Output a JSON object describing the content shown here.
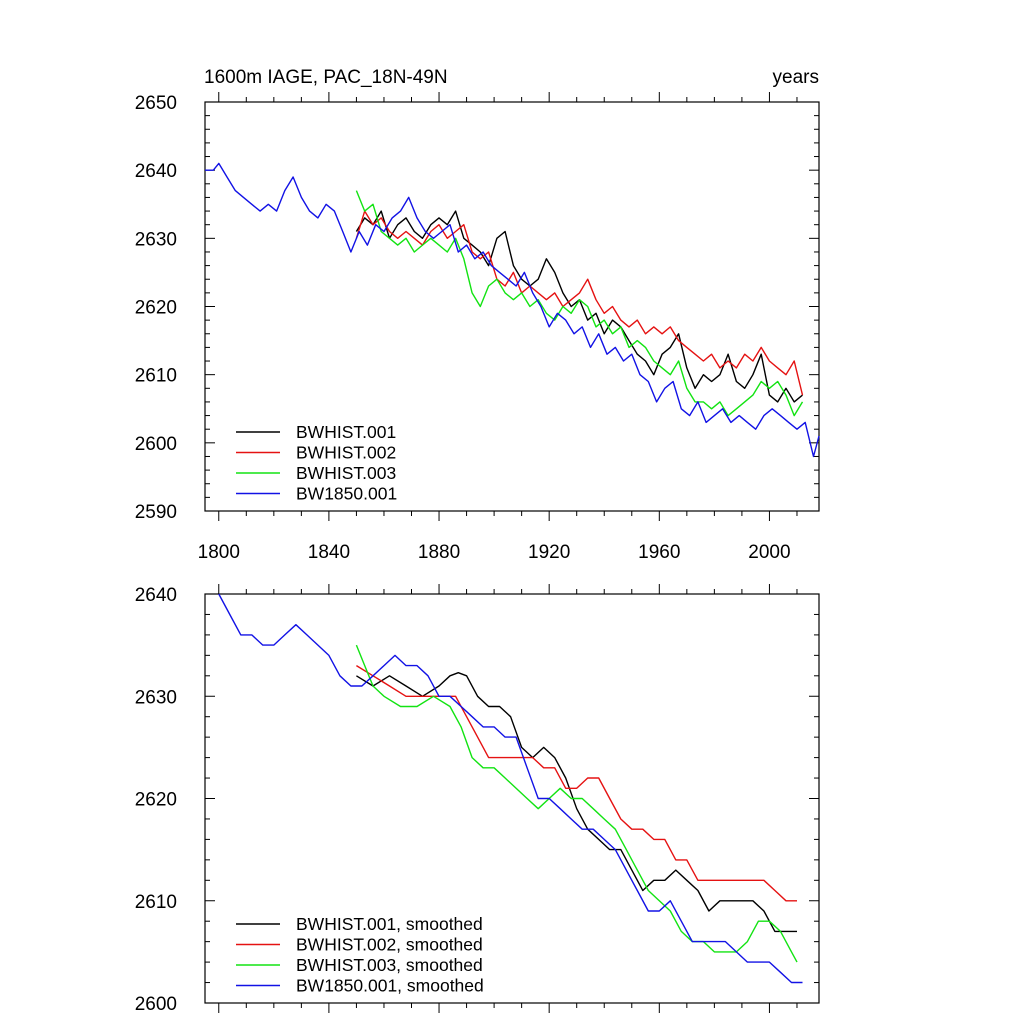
{
  "chart_data": [
    {
      "type": "line",
      "title": "1600m IAGE, PAC_18N-49N",
      "units": "years",
      "xlim": [
        1795,
        2018
      ],
      "ylim": [
        2590,
        2650
      ],
      "xticks": [
        1800,
        1840,
        1880,
        1920,
        1960,
        2000
      ],
      "yticks": [
        2590,
        2600,
        2610,
        2620,
        2630,
        2640,
        2650
      ],
      "legend_position": "bottom-left",
      "series": [
        {
          "name": "BWHIST.001",
          "color": "#000000",
          "x": [
            1850,
            1853,
            1856,
            1859,
            1862,
            1865,
            1868,
            1871,
            1874,
            1877,
            1880,
            1883,
            1886,
            1889,
            1892,
            1895,
            1898,
            1901,
            1904,
            1907,
            1910,
            1913,
            1916,
            1919,
            1922,
            1925,
            1928,
            1931,
            1934,
            1937,
            1940,
            1943,
            1946,
            1949,
            1952,
            1955,
            1958,
            1961,
            1964,
            1967,
            1970,
            1973,
            1976,
            1979,
            1982,
            1985,
            1988,
            1991,
            1994,
            1997,
            2000,
            2003,
            2006,
            2009,
            2012
          ],
          "y": [
            2631,
            2633,
            2632,
            2634,
            2630,
            2632,
            2633,
            2631,
            2630,
            2632,
            2633,
            2632,
            2634,
            2630,
            2629,
            2628,
            2626,
            2630,
            2631,
            2626,
            2624,
            2623,
            2624,
            2627,
            2625,
            2622,
            2620,
            2621,
            2618,
            2619,
            2616,
            2618,
            2617,
            2615,
            2613,
            2612,
            2610,
            2613,
            2614,
            2616,
            2611,
            2608,
            2610,
            2609,
            2610,
            2613,
            2609,
            2608,
            2610,
            2613,
            2607,
            2606,
            2608,
            2606,
            2607
          ]
        },
        {
          "name": "BWHIST.002",
          "color": "#e51212",
          "x": [
            1850,
            1853,
            1856,
            1859,
            1862,
            1865,
            1868,
            1871,
            1874,
            1877,
            1880,
            1883,
            1886,
            1889,
            1892,
            1895,
            1898,
            1901,
            1904,
            1907,
            1910,
            1913,
            1916,
            1919,
            1922,
            1925,
            1928,
            1931,
            1934,
            1937,
            1940,
            1943,
            1946,
            1949,
            1952,
            1955,
            1958,
            1961,
            1964,
            1967,
            1970,
            1973,
            1976,
            1979,
            1982,
            1985,
            1988,
            1991,
            1994,
            1997,
            2000,
            2003,
            2006,
            2009,
            2012
          ],
          "y": [
            2630,
            2634,
            2632,
            2633,
            2631,
            2630,
            2631,
            2630,
            2629,
            2631,
            2632,
            2630,
            2631,
            2632,
            2628,
            2627,
            2628,
            2624,
            2623,
            2625,
            2622,
            2623,
            2622,
            2621,
            2622,
            2620,
            2621,
            2622,
            2624,
            2621,
            2619,
            2620,
            2618,
            2617,
            2618,
            2616,
            2617,
            2616,
            2617,
            2615,
            2614,
            2613,
            2612,
            2613,
            2611,
            2612,
            2611,
            2613,
            2612,
            2614,
            2612,
            2611,
            2610,
            2612,
            2607
          ]
        },
        {
          "name": "BWHIST.003",
          "color": "#12e312",
          "x": [
            1850,
            1853,
            1856,
            1859,
            1862,
            1865,
            1868,
            1871,
            1874,
            1877,
            1880,
            1883,
            1886,
            1889,
            1892,
            1895,
            1898,
            1901,
            1904,
            1907,
            1910,
            1913,
            1916,
            1919,
            1922,
            1925,
            1928,
            1931,
            1934,
            1937,
            1940,
            1943,
            1946,
            1949,
            1952,
            1955,
            1958,
            1961,
            1964,
            1967,
            1970,
            1973,
            1976,
            1979,
            1982,
            1985,
            1988,
            1991,
            1994,
            1997,
            2000,
            2003,
            2006,
            2009,
            2012
          ],
          "y": [
            2637,
            2634,
            2635,
            2631,
            2630,
            2629,
            2630,
            2628,
            2629,
            2630,
            2629,
            2628,
            2630,
            2627,
            2622,
            2620,
            2623,
            2624,
            2622,
            2621,
            2622,
            2620,
            2621,
            2619,
            2618,
            2620,
            2619,
            2621,
            2620,
            2617,
            2618,
            2616,
            2617,
            2614,
            2615,
            2614,
            2612,
            2611,
            2610,
            2612,
            2608,
            2606,
            2606,
            2605,
            2606,
            2604,
            2605,
            2606,
            2607,
            2609,
            2608,
            2609,
            2607,
            2604,
            2606
          ]
        },
        {
          "name": "BW1850.001",
          "color": "#1212e5",
          "x": [
            1795,
            1798,
            1800,
            1803,
            1806,
            1809,
            1812,
            1815,
            1818,
            1821,
            1824,
            1827,
            1830,
            1833,
            1836,
            1839,
            1842,
            1845,
            1848,
            1851,
            1854,
            1857,
            1860,
            1863,
            1866,
            1869,
            1872,
            1875,
            1878,
            1881,
            1884,
            1887,
            1890,
            1893,
            1896,
            1899,
            1902,
            1905,
            1908,
            1911,
            1914,
            1917,
            1920,
            1923,
            1926,
            1929,
            1932,
            1935,
            1938,
            1941,
            1944,
            1947,
            1950,
            1953,
            1956,
            1959,
            1962,
            1965,
            1968,
            1971,
            1974,
            1977,
            1980,
            1983,
            1986,
            1989,
            1992,
            1995,
            1998,
            2001,
            2004,
            2007,
            2010,
            2013,
            2016,
            2018
          ],
          "y": [
            2640,
            2640,
            2641,
            2639,
            2637,
            2636,
            2635,
            2634,
            2635,
            2634,
            2637,
            2639,
            2636,
            2634,
            2633,
            2635,
            2634,
            2631,
            2628,
            2631,
            2629,
            2632,
            2631,
            2633,
            2634,
            2636,
            2633,
            2631,
            2630,
            2631,
            2632,
            2628,
            2629,
            2627,
            2628,
            2626,
            2625,
            2624,
            2623,
            2625,
            2622,
            2620,
            2617,
            2619,
            2618,
            2616,
            2617,
            2614,
            2616,
            2613,
            2614,
            2612,
            2613,
            2610,
            2609,
            2606,
            2608,
            2609,
            2605,
            2604,
            2606,
            2603,
            2604,
            2605,
            2603,
            2604,
            2603,
            2602,
            2604,
            2605,
            2604,
            2603,
            2602,
            2603,
            2598,
            2601
          ]
        }
      ]
    },
    {
      "type": "line",
      "title": "",
      "units": "",
      "xlim": [
        1795,
        2018
      ],
      "ylim": [
        2600,
        2640
      ],
      "xticks": [
        1800,
        1840,
        1880,
        1920,
        1960,
        2000
      ],
      "yticks": [
        2600,
        2610,
        2620,
        2630,
        2640
      ],
      "legend_position": "bottom-left",
      "series": [
        {
          "name": "BWHIST.001, smoothed",
          "color": "#000000",
          "x": [
            1850,
            1856,
            1862,
            1868,
            1874,
            1880,
            1884,
            1887,
            1890,
            1894,
            1898,
            1902,
            1906,
            1910,
            1914,
            1918,
            1922,
            1926,
            1930,
            1934,
            1938,
            1942,
            1946,
            1950,
            1954,
            1958,
            1962,
            1966,
            1970,
            1974,
            1978,
            1982,
            1986,
            1990,
            1994,
            1998,
            2002,
            2006,
            2010
          ],
          "y": [
            2632,
            2631,
            2632,
            2631,
            2630,
            2631,
            2632,
            2632.3,
            2632,
            2630,
            2629,
            2629,
            2628,
            2625,
            2624,
            2625,
            2624,
            2622,
            2619,
            2617,
            2616,
            2615,
            2615,
            2613,
            2611,
            2612,
            2612,
            2613,
            2612,
            2611,
            2609,
            2610,
            2610,
            2610,
            2610,
            2609,
            2607,
            2607,
            2607
          ]
        },
        {
          "name": "BWHIST.002, smoothed",
          "color": "#e51212",
          "x": [
            1850,
            1856,
            1862,
            1868,
            1874,
            1880,
            1886,
            1890,
            1894,
            1898,
            1902,
            1906,
            1910,
            1914,
            1918,
            1922,
            1926,
            1930,
            1934,
            1938,
            1942,
            1946,
            1950,
            1954,
            1958,
            1962,
            1966,
            1970,
            1974,
            1978,
            1982,
            1986,
            1990,
            1994,
            1998,
            2002,
            2006,
            2010
          ],
          "y": [
            2633,
            2632,
            2631,
            2630,
            2630,
            2630,
            2630,
            2628,
            2626,
            2624,
            2624,
            2624,
            2624,
            2624,
            2623,
            2623,
            2621,
            2621,
            2622,
            2622,
            2620,
            2618,
            2617,
            2617,
            2616,
            2616,
            2614,
            2614,
            2612,
            2612,
            2612,
            2612,
            2612,
            2612,
            2612,
            2611,
            2610,
            2610
          ]
        },
        {
          "name": "BWHIST.003, smoothed",
          "color": "#12e312",
          "x": [
            1850,
            1853,
            1856,
            1860,
            1866,
            1872,
            1878,
            1884,
            1888,
            1892,
            1896,
            1900,
            1904,
            1908,
            1912,
            1916,
            1920,
            1924,
            1928,
            1932,
            1936,
            1940,
            1944,
            1948,
            1952,
            1956,
            1960,
            1964,
            1968,
            1972,
            1976,
            1980,
            1984,
            1988,
            1992,
            1996,
            2000,
            2004,
            2008,
            2010
          ],
          "y": [
            2635,
            2633,
            2631,
            2630,
            2629,
            2629,
            2630,
            2629,
            2627,
            2624,
            2623,
            2623,
            2622,
            2621,
            2620,
            2619,
            2620,
            2621,
            2620,
            2620,
            2619,
            2618,
            2617,
            2615,
            2613,
            2611,
            2610,
            2609,
            2607,
            2606,
            2606,
            2605,
            2605,
            2605,
            2606,
            2608,
            2608,
            2607,
            2605,
            2604
          ]
        },
        {
          "name": "BW1850.001, smoothed",
          "color": "#1212e5",
          "x": [
            1800,
            1804,
            1808,
            1812,
            1816,
            1820,
            1824,
            1828,
            1832,
            1836,
            1840,
            1844,
            1848,
            1852,
            1856,
            1860,
            1864,
            1868,
            1872,
            1876,
            1880,
            1884,
            1888,
            1892,
            1896,
            1900,
            1904,
            1908,
            1912,
            1916,
            1920,
            1924,
            1928,
            1932,
            1936,
            1940,
            1944,
            1948,
            1952,
            1956,
            1960,
            1964,
            1968,
            1972,
            1976,
            1980,
            1984,
            1988,
            1992,
            1996,
            2000,
            2004,
            2008,
            2012
          ],
          "y": [
            2640,
            2638,
            2636,
            2636,
            2635,
            2635,
            2636,
            2637,
            2636,
            2635,
            2634,
            2632,
            2631,
            2631,
            2632,
            2633,
            2634,
            2633,
            2633,
            2632,
            2630,
            2630,
            2629,
            2628,
            2627,
            2627,
            2626,
            2626,
            2623,
            2620,
            2620,
            2619,
            2618,
            2617,
            2617,
            2616,
            2615,
            2613,
            2611,
            2609,
            2609,
            2610,
            2608,
            2606,
            2606,
            2606,
            2606,
            2605,
            2604,
            2604,
            2604,
            2603,
            2602,
            2602
          ]
        }
      ]
    }
  ]
}
